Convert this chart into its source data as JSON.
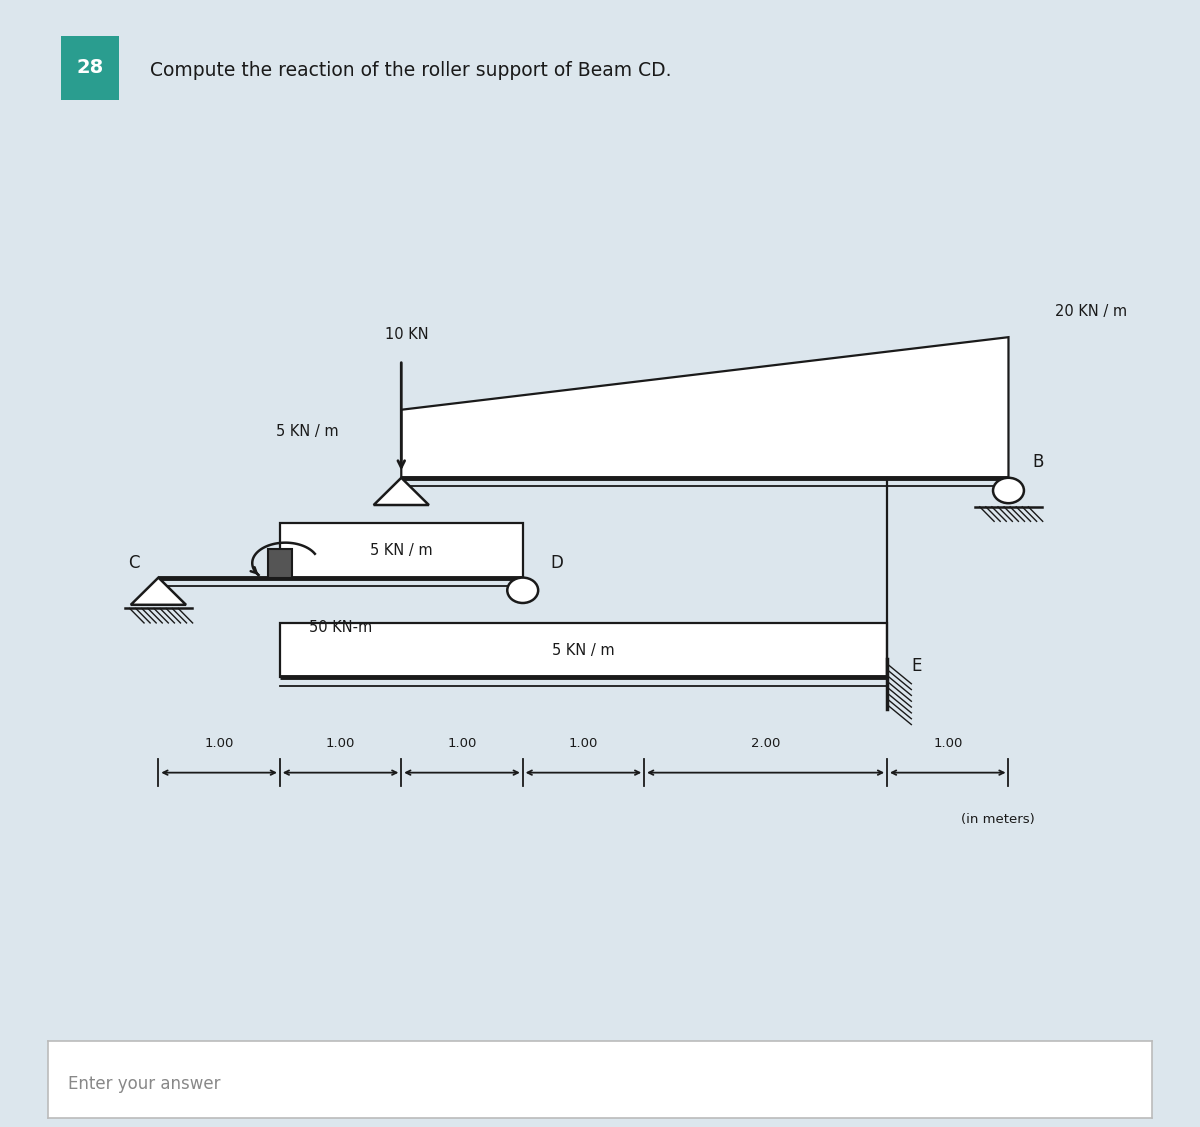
{
  "title_number": "28",
  "title_text": "Compute the reaction of the roller support of Beam CD.",
  "title_number_bg": "#2a9d8f",
  "header_bg": "#ccd9e3",
  "main_bg": "#ffffff",
  "outer_bg": "#dce6ed",
  "answer_border": "#bbbbbb",
  "answer_text": "Enter your answer",
  "text_color": "#1a1a1a",
  "beam_color": "#1a1a1a",
  "dims": [
    1.0,
    1.0,
    1.0,
    1.0,
    2.0,
    1.0
  ],
  "load_10kn_label": "10 KN",
  "load_20knm_label": "20 KN / m",
  "load_5knm_top_label": "5 KN / m",
  "load_5knm_mid_label": "5 KN / m",
  "load_5knm_bot_label": "5 KN / m",
  "moment_label": "50 KN-m",
  "dims_label": "(in meters)"
}
